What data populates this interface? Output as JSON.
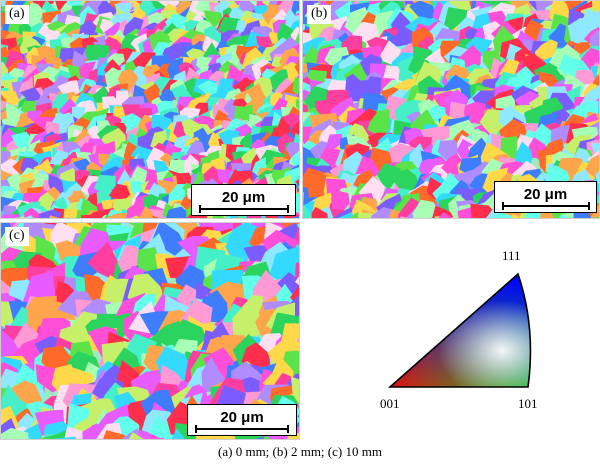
{
  "panels": [
    {
      "label": "(a)",
      "scale_bar": "20 μm"
    },
    {
      "label": "(b)",
      "scale_bar": "20 μm"
    },
    {
      "label": "(c)",
      "scale_bar": "20 μm"
    }
  ],
  "ipf_key": {
    "top_label": "111",
    "left_label": "001",
    "right_label": "101"
  },
  "caption": "(a) 0 mm; (b) 2 mm; (c) 10 mm"
}
